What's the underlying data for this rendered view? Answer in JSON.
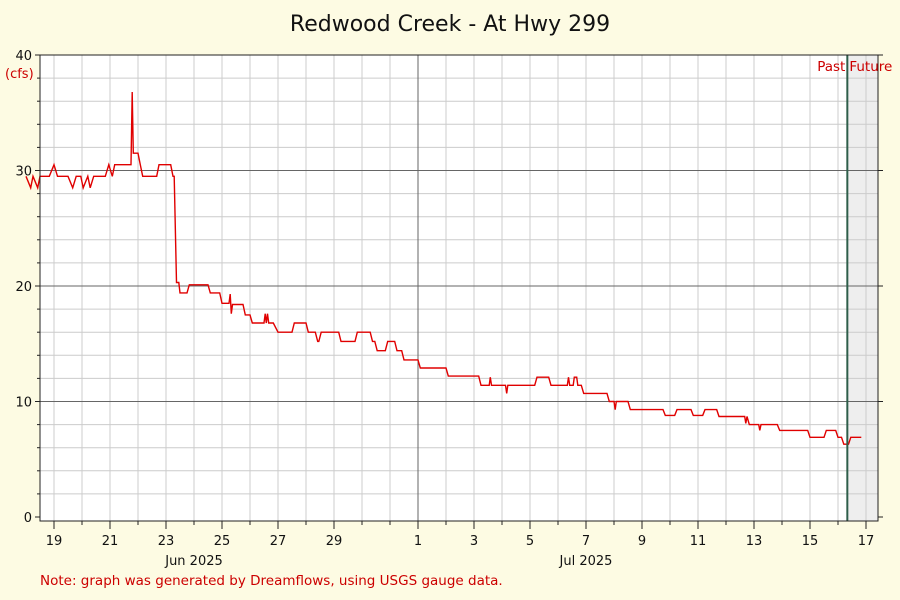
{
  "title": "Redwood Creek - At Hwy 299",
  "y_unit": "(cfs)",
  "note": "Note: graph was generated by Dreamflows, using USGS gauge data.",
  "past_label": "Past",
  "future_label": "Future",
  "colors": {
    "background": "#fdfbe3",
    "plot_bg": "#ffffff",
    "future_bg": "#eeeeee",
    "grid_minor": "#cccccc",
    "grid_major": "#666666",
    "series": "#e00000",
    "now_line": "#2e5e4a",
    "accent_text": "#cc0000"
  },
  "chart_data": {
    "type": "line",
    "title": "Redwood Creek - At Hwy 299",
    "ylabel": "(cfs)",
    "ylim": [
      0,
      40
    ],
    "yticks": [
      0,
      10,
      20,
      30,
      40
    ],
    "xlim": [
      "2025-05-18",
      "2025-07-18"
    ],
    "x_tick_labels": [
      {
        "date": "2025-05-19",
        "label": "19"
      },
      {
        "date": "2025-05-21",
        "label": "21"
      },
      {
        "date": "2025-05-23",
        "label": "23"
      },
      {
        "date": "2025-05-25",
        "label": "25"
      },
      {
        "date": "2025-05-27",
        "label": "27"
      },
      {
        "date": "2025-05-29",
        "label": "29"
      },
      {
        "date": "2025-06-01",
        "label": "1"
      },
      {
        "date": "2025-06-03",
        "label": "3"
      },
      {
        "date": "2025-06-05",
        "label": "5"
      },
      {
        "date": "2025-06-07",
        "label": "7"
      },
      {
        "date": "2025-06-09",
        "label": "9"
      },
      {
        "date": "2025-06-11",
        "label": "11"
      },
      {
        "date": "2025-06-13",
        "label": "13"
      },
      {
        "date": "2025-06-15",
        "label": "15"
      },
      {
        "date": "2025-06-17",
        "label": "17"
      }
    ],
    "month_labels": [
      {
        "date": "2025-05-24",
        "label": "Jun 2025"
      },
      {
        "date": "2025-06-07",
        "label": "Jul 2025"
      }
    ],
    "now": "2025-06-16T08:00",
    "grid": true,
    "series": [
      {
        "color": "#e00000",
        "points": [
          [
            "2025-05-18T00:00",
            29.5
          ],
          [
            "2025-05-18T04:00",
            28.5
          ],
          [
            "2025-05-18T06:00",
            29.5
          ],
          [
            "2025-05-18T10:00",
            28.5
          ],
          [
            "2025-05-18T12:00",
            29.5
          ],
          [
            "2025-05-18T20:00",
            29.5
          ],
          [
            "2025-05-19T00:00",
            30.5
          ],
          [
            "2025-05-19T03:00",
            29.5
          ],
          [
            "2025-05-19T12:00",
            29.5
          ],
          [
            "2025-05-19T16:00",
            28.5
          ],
          [
            "2025-05-19T19:00",
            29.5
          ],
          [
            "2025-05-19T23:00",
            29.5
          ],
          [
            "2025-05-20T01:00",
            28.5
          ],
          [
            "2025-05-20T05:00",
            29.5
          ],
          [
            "2025-05-20T07:00",
            28.5
          ],
          [
            "2025-05-20T10:00",
            29.5
          ],
          [
            "2025-05-20T20:00",
            29.5
          ],
          [
            "2025-05-20T23:00",
            30.5
          ],
          [
            "2025-05-21T02:00",
            29.5
          ],
          [
            "2025-05-21T04:00",
            30.5
          ],
          [
            "2025-05-21T18:00",
            30.5
          ],
          [
            "2025-05-21T19:00",
            36.8
          ],
          [
            "2025-05-21T20:00",
            31.5
          ],
          [
            "2025-05-22T00:00",
            31.5
          ],
          [
            "2025-05-22T02:00",
            30.5
          ],
          [
            "2025-05-22T04:00",
            29.5
          ],
          [
            "2025-05-22T16:00",
            29.5
          ],
          [
            "2025-05-22T18:00",
            30.5
          ],
          [
            "2025-05-23T04:00",
            30.5
          ],
          [
            "2025-05-23T06:00",
            29.5
          ],
          [
            "2025-05-23T07:00",
            29.5
          ],
          [
            "2025-05-23T09:00",
            20.3
          ],
          [
            "2025-05-23T11:00",
            20.3
          ],
          [
            "2025-05-23T12:00",
            19.4
          ],
          [
            "2025-05-23T18:00",
            19.4
          ],
          [
            "2025-05-23T20:00",
            20.1
          ],
          [
            "2025-05-24T12:00",
            20.1
          ],
          [
            "2025-05-24T14:00",
            19.4
          ],
          [
            "2025-05-24T22:00",
            19.4
          ],
          [
            "2025-05-25T00:00",
            18.5
          ],
          [
            "2025-05-25T06:00",
            18.5
          ],
          [
            "2025-05-25T07:00",
            19.3
          ],
          [
            "2025-05-25T08:00",
            17.6
          ],
          [
            "2025-05-25T09:00",
            18.4
          ],
          [
            "2025-05-25T18:00",
            18.4
          ],
          [
            "2025-05-25T20:00",
            17.5
          ],
          [
            "2025-05-26T00:00",
            17.5
          ],
          [
            "2025-05-26T02:00",
            16.8
          ],
          [
            "2025-05-26T12:00",
            16.8
          ],
          [
            "2025-05-26T13:00",
            17.6
          ],
          [
            "2025-05-26T14:00",
            16.8
          ],
          [
            "2025-05-26T15:00",
            17.6
          ],
          [
            "2025-05-26T16:00",
            16.8
          ],
          [
            "2025-05-26T20:00",
            16.8
          ],
          [
            "2025-05-27T00:00",
            16.0
          ],
          [
            "2025-05-27T12:00",
            16.0
          ],
          [
            "2025-05-27T14:00",
            16.8
          ],
          [
            "2025-05-28T00:00",
            16.8
          ],
          [
            "2025-05-28T02:00",
            16.0
          ],
          [
            "2025-05-28T08:00",
            16.0
          ],
          [
            "2025-05-28T10:00",
            15.2
          ],
          [
            "2025-05-28T11:00",
            15.2
          ],
          [
            "2025-05-28T13:00",
            16.0
          ],
          [
            "2025-05-29T04:00",
            16.0
          ],
          [
            "2025-05-29T06:00",
            15.2
          ],
          [
            "2025-05-29T18:00",
            15.2
          ],
          [
            "2025-05-29T20:00",
            16.0
          ],
          [
            "2025-05-30T07:00",
            16.0
          ],
          [
            "2025-05-30T09:00",
            15.2
          ],
          [
            "2025-05-30T11:00",
            15.2
          ],
          [
            "2025-05-30T13:00",
            14.4
          ],
          [
            "2025-05-30T20:00",
            14.4
          ],
          [
            "2025-05-30T22:00",
            15.2
          ],
          [
            "2025-05-31T04:00",
            15.2
          ],
          [
            "2025-05-31T06:00",
            14.4
          ],
          [
            "2025-05-31T10:00",
            14.4
          ],
          [
            "2025-05-31T12:00",
            13.6
          ],
          [
            "2025-06-01T00:00",
            13.6
          ],
          [
            "2025-06-01T02:00",
            12.9
          ],
          [
            "2025-06-02T00:00",
            12.9
          ],
          [
            "2025-06-02T02:00",
            12.2
          ],
          [
            "2025-06-03T04:00",
            12.2
          ],
          [
            "2025-06-03T06:00",
            11.4
          ],
          [
            "2025-06-03T13:00",
            11.4
          ],
          [
            "2025-06-03T14:00",
            12.1
          ],
          [
            "2025-06-03T15:00",
            11.4
          ],
          [
            "2025-06-04T03:00",
            11.4
          ],
          [
            "2025-06-04T04:00",
            10.7
          ],
          [
            "2025-06-04T05:00",
            11.4
          ],
          [
            "2025-06-05T04:00",
            11.4
          ],
          [
            "2025-06-05T06:00",
            12.1
          ],
          [
            "2025-06-05T16:00",
            12.1
          ],
          [
            "2025-06-05T18:00",
            11.4
          ],
          [
            "2025-06-06T08:00",
            11.4
          ],
          [
            "2025-06-06T09:00",
            12.1
          ],
          [
            "2025-06-06T10:00",
            11.4
          ],
          [
            "2025-06-06T13:00",
            11.4
          ],
          [
            "2025-06-06T14:00",
            12.1
          ],
          [
            "2025-06-06T16:00",
            12.1
          ],
          [
            "2025-06-06T17:00",
            11.4
          ],
          [
            "2025-06-06T20:00",
            11.4
          ],
          [
            "2025-06-06T22:00",
            10.7
          ],
          [
            "2025-06-07T18:00",
            10.7
          ],
          [
            "2025-06-07T20:00",
            10.0
          ],
          [
            "2025-06-08T00:00",
            10.0
          ],
          [
            "2025-06-08T01:00",
            9.3
          ],
          [
            "2025-06-08T02:00",
            10.0
          ],
          [
            "2025-06-08T12:00",
            10.0
          ],
          [
            "2025-06-08T14:00",
            9.3
          ],
          [
            "2025-06-09T18:00",
            9.3
          ],
          [
            "2025-06-09T20:00",
            8.8
          ],
          [
            "2025-06-10T04:00",
            8.8
          ],
          [
            "2025-06-10T06:00",
            9.3
          ],
          [
            "2025-06-10T18:00",
            9.3
          ],
          [
            "2025-06-10T20:00",
            8.8
          ],
          [
            "2025-06-11T04:00",
            8.8
          ],
          [
            "2025-06-11T06:00",
            9.3
          ],
          [
            "2025-06-11T16:00",
            9.3
          ],
          [
            "2025-06-11T18:00",
            8.7
          ],
          [
            "2025-06-12T16:00",
            8.7
          ],
          [
            "2025-06-12T17:00",
            8.1
          ],
          [
            "2025-06-12T18:00",
            8.7
          ],
          [
            "2025-06-12T20:00",
            8.0
          ],
          [
            "2025-06-13T04:00",
            8.0
          ],
          [
            "2025-06-13T05:00",
            7.5
          ],
          [
            "2025-06-13T06:00",
            8.0
          ],
          [
            "2025-06-13T20:00",
            8.0
          ],
          [
            "2025-06-13T22:00",
            7.5
          ],
          [
            "2025-06-14T22:00",
            7.5
          ],
          [
            "2025-06-15T00:00",
            6.9
          ],
          [
            "2025-06-15T12:00",
            6.9
          ],
          [
            "2025-06-15T14:00",
            7.5
          ],
          [
            "2025-06-15T22:00",
            7.5
          ],
          [
            "2025-06-16T00:00",
            6.9
          ],
          [
            "2025-06-16T03:00",
            6.9
          ],
          [
            "2025-06-16T05:00",
            6.3
          ],
          [
            "2025-06-16T09:00",
            6.3
          ],
          [
            "2025-06-16T11:00",
            6.9
          ],
          [
            "2025-06-16T20:00",
            6.9
          ]
        ]
      }
    ]
  }
}
